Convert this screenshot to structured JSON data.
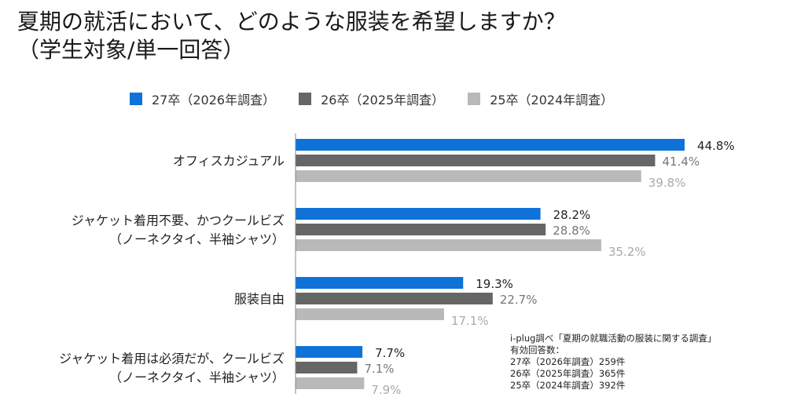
{
  "title": {
    "line1": "夏期の就活において、どのような服装を希望しますか？",
    "line2": "（学生対象/単一回答）"
  },
  "colors": {
    "s27": "#0f72d8",
    "s26": "#666666",
    "s25": "#b9b9b9",
    "label_dark": "#222222",
    "label_mid": "#777777",
    "label_light": "#aaaaaa"
  },
  "chart_data": {
    "type": "bar",
    "orientation": "horizontal",
    "title": "夏期の就活において、どのような服装を希望しますか？（学生対象/単一回答）",
    "categories": [
      [
        "オフィスカジュアル"
      ],
      [
        "ジャケット着用不要、かつクールビズ",
        "（ノーネクタイ、半袖シャツ）"
      ],
      [
        "服装自由"
      ],
      [
        "ジャケット着用は必須だが、クールビズ",
        "（ノーネクタイ、半袖シャツ）"
      ]
    ],
    "series": [
      {
        "name": "27卒（2026年調査）",
        "values": [
          44.8,
          28.2,
          19.3,
          7.7
        ]
      },
      {
        "name": "26卒（2025年調査）",
        "values": [
          41.4,
          28.8,
          22.7,
          7.1
        ]
      },
      {
        "name": "25卒（2024年調査）",
        "values": [
          39.8,
          35.2,
          17.1,
          7.9
        ]
      }
    ],
    "unit": "%",
    "xlim": [
      0,
      50
    ],
    "data_labels": true,
    "legend_position": "top",
    "grid": false,
    "axis_line": "vertical baseline only"
  },
  "note": {
    "lines": [
      "i-plug調べ「夏期の就職活動の服装に関する調査」",
      "有効回答数：",
      "27卒（2026年調査）259件",
      "26卒（2025年調査）365件",
      "25卒（2024年調査）392件"
    ]
  }
}
